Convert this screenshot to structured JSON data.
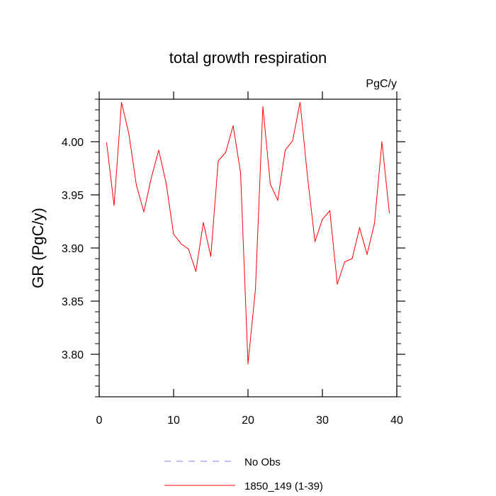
{
  "chart_data": {
    "type": "line",
    "title": "total growth respiration",
    "units_label": "PgC/y",
    "ylabel": "GR  (PgC/y)",
    "xlabel": "",
    "xlim": [
      0,
      40
    ],
    "ylim": [
      3.76,
      4.04
    ],
    "x_ticks": [
      0,
      10,
      20,
      30,
      40
    ],
    "x_tick_labels": [
      "0",
      "10",
      "20",
      "30",
      "40"
    ],
    "y_ticks": [
      3.8,
      3.85,
      3.9,
      3.95,
      4.0
    ],
    "y_tick_labels": [
      "3.80",
      "3.85",
      "3.90",
      "3.95",
      "4.00"
    ],
    "grid": false,
    "legend_position": "bottom-center",
    "series": [
      {
        "name": "No Obs",
        "color": "#8080ff",
        "dash": "dashed",
        "x": [],
        "y": []
      },
      {
        "name": "1850_149 (1-39)",
        "color": "#ff0000",
        "dash": "solid",
        "x": [
          1,
          2,
          3,
          4,
          5,
          6,
          7,
          8,
          9,
          10,
          11,
          12,
          13,
          14,
          15,
          16,
          17,
          18,
          19,
          20,
          21,
          22,
          23,
          24,
          25,
          26,
          27,
          28,
          29,
          30,
          31,
          32,
          33,
          34,
          35,
          36,
          37,
          38,
          39
        ],
        "y": [
          3.999,
          3.94,
          4.037,
          4.007,
          3.959,
          3.934,
          3.966,
          3.992,
          3.961,
          3.913,
          3.904,
          3.899,
          3.878,
          3.924,
          3.892,
          3.982,
          3.99,
          4.015,
          3.971,
          3.791,
          3.861,
          4.033,
          3.96,
          3.945,
          3.992,
          4.001,
          4.037,
          3.967,
          3.906,
          3.927,
          3.935,
          3.866,
          3.887,
          3.89,
          3.919,
          3.894,
          3.923,
          4.0,
          3.933
        ]
      }
    ]
  }
}
